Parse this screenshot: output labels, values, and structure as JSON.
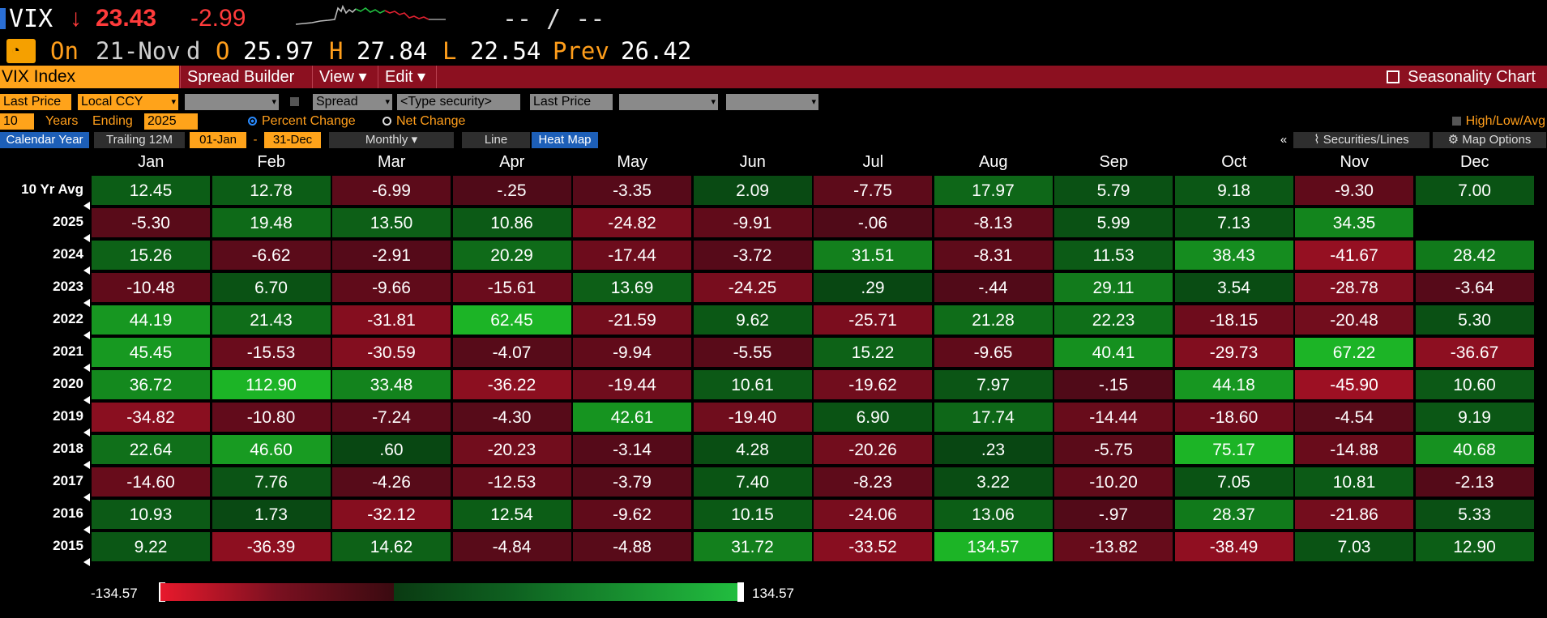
{
  "quote": {
    "ticker": "VIX",
    "direction_arrow": "↓",
    "last": "23.43",
    "change": "-2.99",
    "bid_ask": "-- / --",
    "on_label": "On",
    "date": "21-Nov",
    "d_label": "d",
    "open_label": "O",
    "open": "25.97",
    "high_label": "H",
    "high": "27.84",
    "low_label": "L",
    "low": "22.54",
    "prev_label": "Prev",
    "prev": "26.42"
  },
  "menu": {
    "security": "VIX Index",
    "spread_builder": "Spread Builder",
    "view": "View ▾",
    "edit": "Edit ▾",
    "seasonality_chart": "Seasonality Chart"
  },
  "controls": {
    "field1": "Last Price",
    "currency": "Local CCY",
    "spread": "Spread",
    "type_security": "<Type security>",
    "field2": "Last Price",
    "years": "10",
    "years_label": "Years",
    "ending_label": "Ending",
    "ending_year": "2025",
    "percent_change": "Percent Change",
    "net_change": "Net Change",
    "high_low_avg": "High/Low/Avg",
    "calendar_year": "Calendar Year",
    "trailing": "Trailing 12M",
    "from": "01-Jan",
    "dash": "-",
    "to": "31-Dec",
    "period": "Monthly ▾",
    "line": "Line",
    "heat_map": "Heat Map",
    "collapse": "«",
    "securities_lines": "Securities/Lines",
    "map_options": "Map Options"
  },
  "colors": {
    "strong_green": "#22c040",
    "green": "#0e7a24",
    "dark_green": "#0b4a17",
    "dark_red": "#4a0c16",
    "red": "#7a1222",
    "strong_red": "#e8192c"
  },
  "scale": {
    "min": "-134.57",
    "max": "134.57"
  },
  "chart_data": {
    "type": "heatmap",
    "columns": [
      "Jan",
      "Feb",
      "Mar",
      "Apr",
      "May",
      "Jun",
      "Jul",
      "Aug",
      "Sep",
      "Oct",
      "Nov",
      "Dec"
    ],
    "rows": [
      {
        "label": "10 Yr Avg",
        "values": [
          "12.45",
          "12.78",
          "-6.99",
          "-.25",
          "-3.35",
          "2.09",
          "-7.75",
          "17.97",
          "5.79",
          "9.18",
          "-9.30",
          "7.00"
        ]
      },
      {
        "label": "2025",
        "values": [
          "-5.30",
          "19.48",
          "13.50",
          "10.86",
          "-24.82",
          "-9.91",
          "-.06",
          "-8.13",
          "5.99",
          "7.13",
          "34.35",
          ""
        ]
      },
      {
        "label": "2024",
        "values": [
          "15.26",
          "-6.62",
          "-2.91",
          "20.29",
          "-17.44",
          "-3.72",
          "31.51",
          "-8.31",
          "11.53",
          "38.43",
          "-41.67",
          "28.42"
        ]
      },
      {
        "label": "2023",
        "values": [
          "-10.48",
          "6.70",
          "-9.66",
          "-15.61",
          "13.69",
          "-24.25",
          ".29",
          "-.44",
          "29.11",
          "3.54",
          "-28.78",
          "-3.64"
        ]
      },
      {
        "label": "2022",
        "values": [
          "44.19",
          "21.43",
          "-31.81",
          "62.45",
          "-21.59",
          "9.62",
          "-25.71",
          "21.28",
          "22.23",
          "-18.15",
          "-20.48",
          "5.30"
        ]
      },
      {
        "label": "2021",
        "values": [
          "45.45",
          "-15.53",
          "-30.59",
          "-4.07",
          "-9.94",
          "-5.55",
          "15.22",
          "-9.65",
          "40.41",
          "-29.73",
          "67.22",
          "-36.67"
        ]
      },
      {
        "label": "2020",
        "values": [
          "36.72",
          "112.90",
          "33.48",
          "-36.22",
          "-19.44",
          "10.61",
          "-19.62",
          "7.97",
          "-.15",
          "44.18",
          "-45.90",
          "10.60"
        ]
      },
      {
        "label": "2019",
        "values": [
          "-34.82",
          "-10.80",
          "-7.24",
          "-4.30",
          "42.61",
          "-19.40",
          "6.90",
          "17.74",
          "-14.44",
          "-18.60",
          "-4.54",
          "9.19"
        ]
      },
      {
        "label": "2018",
        "values": [
          "22.64",
          "46.60",
          ".60",
          "-20.23",
          "-3.14",
          "4.28",
          "-20.26",
          ".23",
          "-5.75",
          "75.17",
          "-14.88",
          "40.68"
        ]
      },
      {
        "label": "2017",
        "values": [
          "-14.60",
          "7.76",
          "-4.26",
          "-12.53",
          "-3.79",
          "7.40",
          "-8.23",
          "3.22",
          "-10.20",
          "7.05",
          "10.81",
          "-2.13"
        ]
      },
      {
        "label": "2016",
        "values": [
          "10.93",
          "1.73",
          "-32.12",
          "12.54",
          "-9.62",
          "10.15",
          "-24.06",
          "13.06",
          "-.97",
          "28.37",
          "-21.86",
          "5.33"
        ]
      },
      {
        "label": "2015",
        "values": [
          "9.22",
          "-36.39",
          "14.62",
          "-4.84",
          "-4.88",
          "31.72",
          "-33.52",
          "134.57",
          "-13.82",
          "-38.49",
          "7.03",
          "12.90"
        ]
      }
    ],
    "range": [
      -134.57,
      134.57
    ]
  }
}
